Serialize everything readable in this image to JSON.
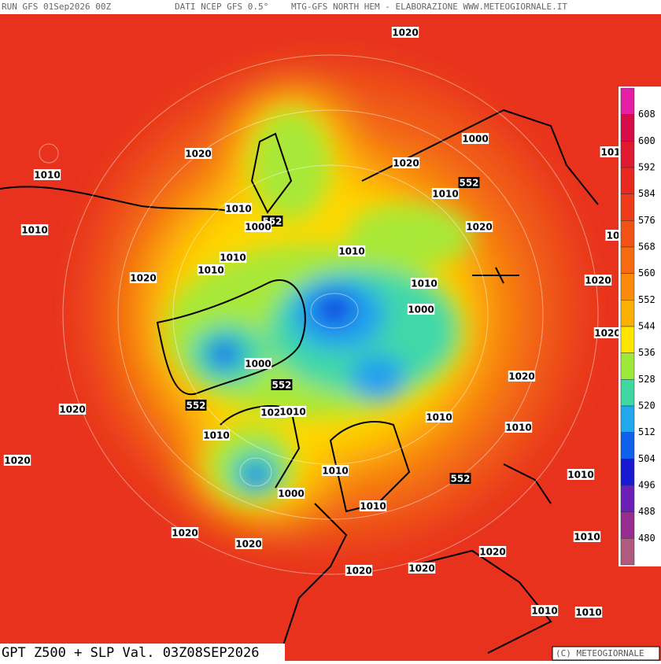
{
  "header": {
    "left": "RUN GFS 01Sep2026 00Z",
    "center": "DATI NCEP GFS 0.5°",
    "right": "MTG-GFS NORTH HEM - ELABORAZIONE WWW.METEOGIORNALE.IT"
  },
  "footer": {
    "title": "GPT Z500 + SLP Val. 03Z08SEP2026",
    "credit": "(C) METEOGIORNALE"
  },
  "colorbar": {
    "labels": [
      "608",
      "600",
      "592",
      "584",
      "576",
      "568",
      "560",
      "552",
      "544",
      "536",
      "528",
      "520",
      "512",
      "504",
      "496",
      "488",
      "480"
    ],
    "colors": [
      "#e61ea6",
      "#d80c48",
      "#e01830",
      "#e8281e",
      "#ee3c18",
      "#f25214",
      "#f66a10",
      "#fa8a0a",
      "#fcb000",
      "#ffe400",
      "#9ee83a",
      "#3ed8a0",
      "#22a8ee",
      "#1060ee",
      "#1818d0",
      "#6a20b8",
      "#962c90",
      "#b05a80"
    ]
  },
  "labels": [
    "1020",
    "1020",
    "1010",
    "1010",
    "1010",
    "552",
    "1000",
    "1010",
    "1010",
    "1020",
    "1000",
    "1020",
    "1010",
    "552",
    "1020",
    "101",
    "10",
    "1010",
    "1010",
    "1020",
    "1000",
    "1020",
    "1000",
    "552",
    "1020",
    "1020",
    "552",
    "1020",
    "1010",
    "1010",
    "1010",
    "1010",
    "1020",
    "1010",
    "552",
    "1000",
    "1010",
    "1010",
    "1020",
    "1020",
    "1010",
    "1020",
    "1020",
    "1020",
    "1010",
    "1010"
  ]
}
